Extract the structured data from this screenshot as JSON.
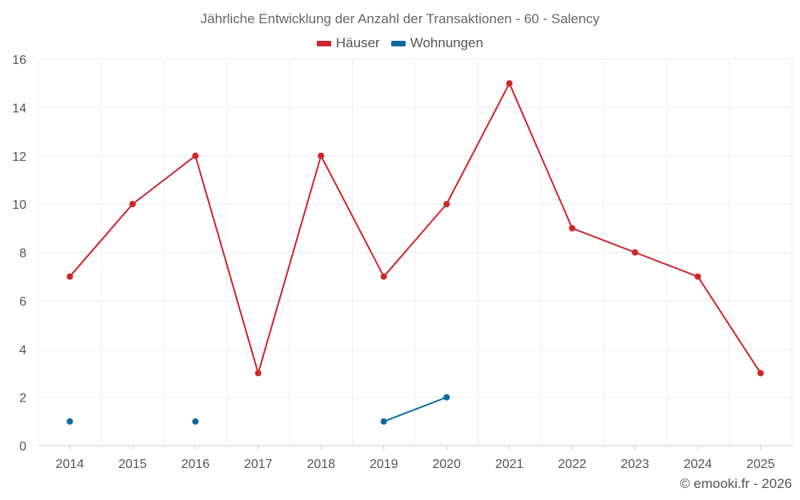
{
  "chart_data": {
    "type": "line",
    "title": "Jährliche Entwicklung der Anzahl der Transaktionen - 60 - Salency",
    "xlabel": "",
    "ylabel": "",
    "categories": [
      "2014",
      "2015",
      "2016",
      "2017",
      "2018",
      "2019",
      "2020",
      "2021",
      "2022",
      "2023",
      "2024",
      "2025"
    ],
    "ylim": [
      0,
      16
    ],
    "yticks": [
      0,
      2,
      4,
      6,
      8,
      10,
      12,
      14,
      16
    ],
    "grid": true,
    "legend_position": "top-center",
    "series": [
      {
        "name": "Häuser",
        "color": "#d0262b",
        "values": [
          7,
          10,
          12,
          3,
          12,
          7,
          10,
          15,
          9,
          8,
          7,
          3
        ]
      },
      {
        "name": "Wohnungen",
        "color": "#0a6aa1",
        "values": [
          1,
          null,
          1,
          null,
          null,
          1,
          2,
          null,
          null,
          null,
          null,
          null
        ]
      }
    ]
  },
  "credit": "© emooki.fr - 2026"
}
